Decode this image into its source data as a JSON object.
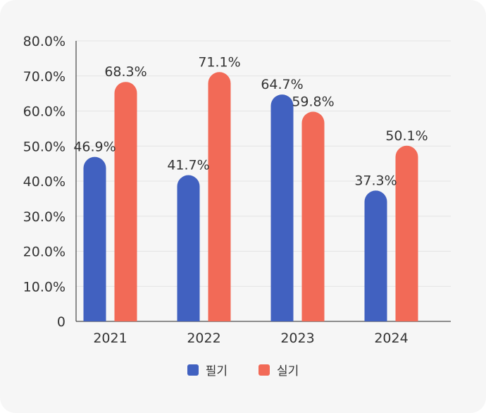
{
  "chart_data": {
    "type": "bar",
    "categories": [
      "2021",
      "2022",
      "2023",
      "2024"
    ],
    "series": [
      {
        "name": "필기",
        "color": "#4161c0",
        "values": [
          46.9,
          41.7,
          64.7,
          37.3
        ]
      },
      {
        "name": "실기",
        "color": "#f26a57",
        "values": [
          68.3,
          71.1,
          59.8,
          50.1
        ]
      }
    ],
    "data_labels": [
      [
        "46.9%",
        "41.7%",
        "64.7%",
        "37.3%"
      ],
      [
        "68.3%",
        "71.1%",
        "59.8%",
        "50.1%"
      ]
    ],
    "ylim": [
      0,
      80
    ],
    "yticks": [
      0,
      10,
      20,
      30,
      40,
      50,
      60,
      70,
      80
    ],
    "ytick_labels": [
      "0",
      "10.0%",
      "20.0%",
      "30.0%",
      "40.0%",
      "50.0%",
      "60.0%",
      "70.0%",
      "80.0%"
    ],
    "title": "",
    "xlabel": "",
    "ylabel": "",
    "grid": true,
    "legend_position": "bottom-center"
  }
}
